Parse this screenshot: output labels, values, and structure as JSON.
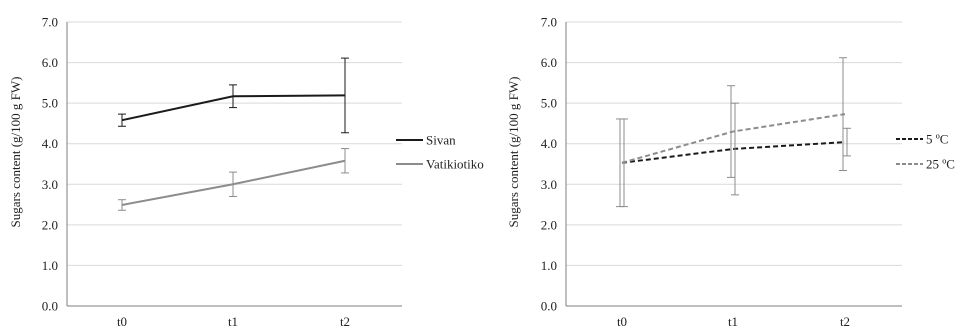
{
  "chart_data": [
    {
      "type": "line",
      "categories": [
        "t0",
        "t1",
        "t2"
      ],
      "ylabel": "Sugars content (g/100 g FW)",
      "xlabel": "",
      "ylim": [
        0,
        7
      ],
      "yticks": [
        "0.0",
        "1.0",
        "2.0",
        "3.0",
        "4.0",
        "5.0",
        "6.0",
        "7.0"
      ],
      "grid": true,
      "legend_position": "right",
      "series": [
        {
          "name": "Sivan",
          "values": [
            4.58,
            5.17,
            5.19
          ],
          "err": [
            0.15,
            0.28,
            0.92
          ],
          "color": "#1a1a1a",
          "dash": "solid"
        },
        {
          "name": "Vatikiotiko",
          "values": [
            2.49,
            3.0,
            3.58
          ],
          "err": [
            0.13,
            0.3,
            0.3
          ],
          "color": "#8c8c8c",
          "dash": "solid"
        }
      ]
    },
    {
      "type": "line",
      "categories": [
        "t0",
        "t1",
        "t2"
      ],
      "ylabel": "Sugars content (g/100 g FW)",
      "xlabel": "",
      "ylim": [
        0,
        7
      ],
      "yticks": [
        "0.0",
        "1.0",
        "2.0",
        "3.0",
        "4.0",
        "5.0",
        "6.0",
        "7.0"
      ],
      "grid": true,
      "legend_position": "right",
      "series": [
        {
          "name": "5 ºC",
          "values": [
            3.53,
            3.87,
            4.04
          ],
          "err": [
            1.08,
            1.13,
            0.34
          ],
          "color": "#1a1a1a",
          "dash": "dashed"
        },
        {
          "name": "25 ºC",
          "values": [
            3.53,
            4.3,
            4.73
          ],
          "err": [
            1.08,
            1.13,
            1.39
          ],
          "color": "#8c8c8c",
          "dash": "dashed"
        }
      ]
    }
  ]
}
